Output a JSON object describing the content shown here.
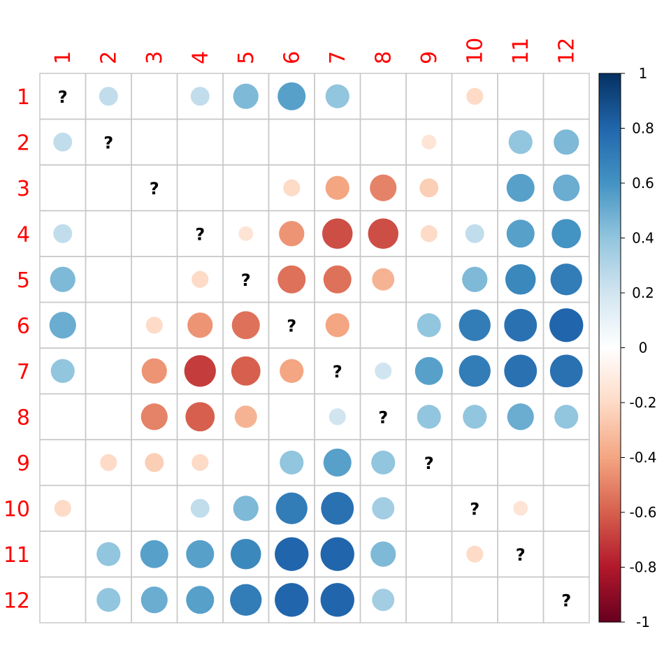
{
  "chart_data": {
    "type": "heatmap",
    "variant": "correlation-matrix-circles",
    "title": "",
    "labels": [
      "1",
      "2",
      "3",
      "4",
      "5",
      "6",
      "7",
      "8",
      "9",
      "10",
      "11",
      "12"
    ],
    "label_color": "#ff0000",
    "na_label": "?",
    "grid": true,
    "legend": "right",
    "matrix": [
      [
        null,
        0.25,
        0,
        0.25,
        0.45,
        0.55,
        0.4,
        0,
        0,
        -0.2,
        0,
        0
      ],
      [
        0.25,
        null,
        0,
        0,
        0,
        0,
        0,
        0,
        -0.15,
        0,
        0.4,
        0.45
      ],
      [
        0,
        0,
        null,
        0,
        0,
        -0.2,
        -0.4,
        -0.5,
        -0.25,
        0,
        0.55,
        0.5
      ],
      [
        0.25,
        0,
        0,
        null,
        -0.15,
        -0.45,
        -0.65,
        -0.65,
        -0.2,
        0.25,
        0.55,
        0.6
      ],
      [
        0.45,
        0,
        0,
        -0.2,
        null,
        -0.55,
        -0.55,
        -0.35,
        0,
        0.45,
        0.65,
        0.7
      ],
      [
        0.5,
        0,
        -0.2,
        -0.45,
        -0.55,
        null,
        -0.4,
        0,
        0.4,
        0.7,
        0.75,
        0.8
      ],
      [
        0.4,
        0,
        -0.45,
        -0.7,
        -0.6,
        -0.4,
        null,
        0.2,
        0.55,
        0.7,
        0.75,
        0.75
      ],
      [
        0,
        0,
        -0.5,
        -0.6,
        -0.35,
        0,
        0.2,
        null,
        0.4,
        0.4,
        0.5,
        0.4
      ],
      [
        0,
        -0.2,
        -0.25,
        -0.2,
        0,
        0.4,
        0.55,
        0.4,
        null,
        0,
        0,
        0
      ],
      [
        -0.2,
        0,
        0,
        0.25,
        0.45,
        0.7,
        0.75,
        0.35,
        0,
        null,
        -0.15,
        0
      ],
      [
        0,
        0.4,
        0.55,
        0.55,
        0.65,
        0.8,
        0.8,
        0.45,
        0,
        -0.2,
        null,
        0
      ],
      [
        0,
        0.4,
        0.5,
        0.55,
        0.7,
        0.8,
        0.8,
        0.35,
        0,
        0,
        0,
        null
      ]
    ],
    "colorbar": {
      "range": [
        -1,
        1
      ],
      "ticks": [
        "1",
        "0.8",
        "0.6",
        "0.4",
        "0.2",
        "0",
        "-0.2",
        "-0.4",
        "-0.6",
        "-0.8",
        "-1"
      ],
      "palette": [
        "#67001f",
        "#b2182b",
        "#d6604d",
        "#f4a582",
        "#fddbc7",
        "#ffffff",
        "#d1e5f0",
        "#92c5de",
        "#4393c3",
        "#2166ac",
        "#053061"
      ]
    }
  }
}
